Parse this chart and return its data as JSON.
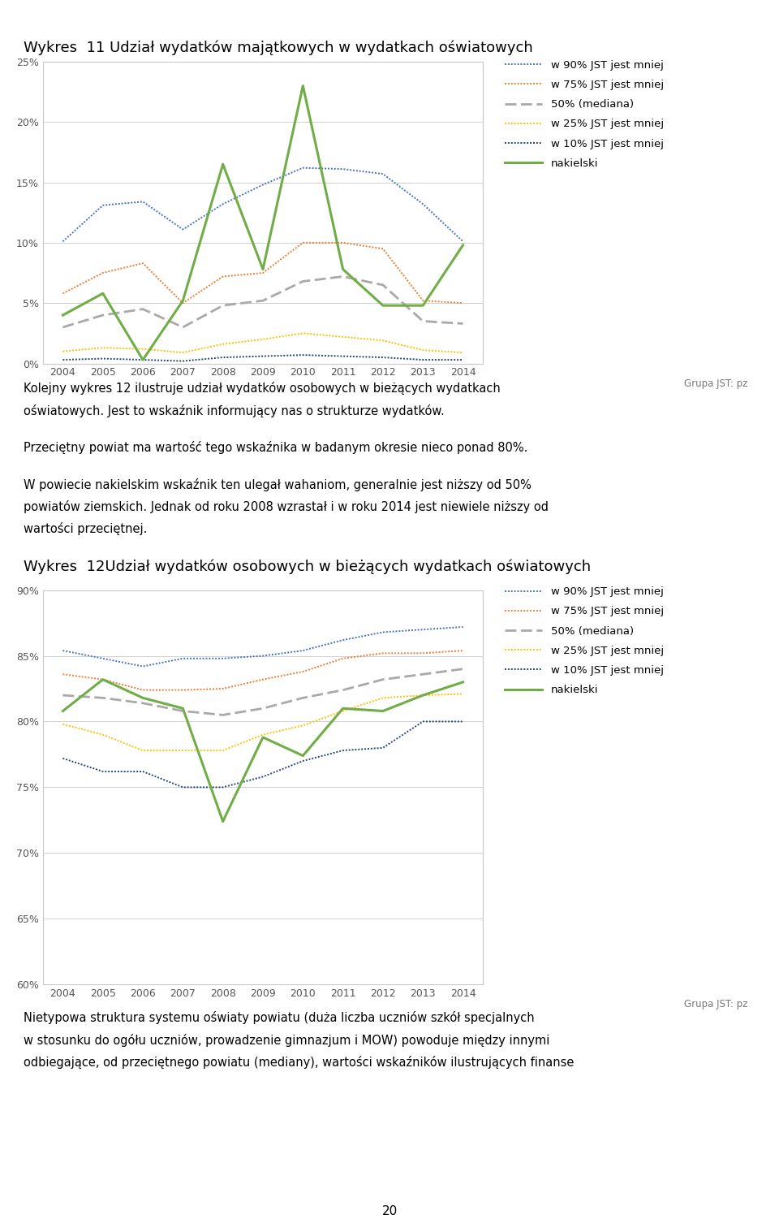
{
  "years": [
    2004,
    2005,
    2006,
    2007,
    2008,
    2009,
    2010,
    2011,
    2012,
    2013,
    2014
  ],
  "chart1": {
    "title": "Wykres  11 Udział wydatków majątkowych w wydatkach oświatowych",
    "ylim": [
      0.0,
      0.25
    ],
    "yticks": [
      0.0,
      0.05,
      0.1,
      0.15,
      0.2,
      0.25
    ],
    "ytick_labels": [
      "0%",
      "5%",
      "10%",
      "15%",
      "20%",
      "25%"
    ],
    "w90": [
      0.101,
      0.131,
      0.134,
      0.111,
      0.132,
      0.148,
      0.162,
      0.161,
      0.157,
      0.132,
      0.101
    ],
    "w75": [
      0.058,
      0.075,
      0.083,
      0.05,
      0.072,
      0.075,
      0.1,
      0.1,
      0.095,
      0.052,
      0.05
    ],
    "median": [
      0.03,
      0.04,
      0.045,
      0.03,
      0.048,
      0.052,
      0.068,
      0.072,
      0.065,
      0.035,
      0.033
    ],
    "w25": [
      0.01,
      0.013,
      0.012,
      0.009,
      0.016,
      0.02,
      0.025,
      0.022,
      0.019,
      0.011,
      0.009
    ],
    "w10": [
      0.003,
      0.004,
      0.003,
      0.002,
      0.005,
      0.006,
      0.007,
      0.006,
      0.005,
      0.003,
      0.003
    ],
    "nakielski": [
      0.04,
      0.058,
      0.003,
      0.052,
      0.165,
      0.078,
      0.23,
      0.078,
      0.048,
      0.048,
      0.098
    ]
  },
  "chart2": {
    "title": "Wykres  12Udział wydatków osobowych w bieżących wydatkach oświatowych",
    "ylim": [
      0.6,
      0.9
    ],
    "yticks": [
      0.6,
      0.65,
      0.7,
      0.75,
      0.8,
      0.85,
      0.9
    ],
    "ytick_labels": [
      "60%",
      "65%",
      "70%",
      "75%",
      "80%",
      "85%",
      "90%"
    ],
    "w90": [
      0.854,
      0.848,
      0.842,
      0.848,
      0.848,
      0.85,
      0.854,
      0.862,
      0.868,
      0.87,
      0.872
    ],
    "w75": [
      0.836,
      0.832,
      0.824,
      0.824,
      0.825,
      0.832,
      0.838,
      0.848,
      0.852,
      0.852,
      0.854
    ],
    "median": [
      0.82,
      0.818,
      0.814,
      0.808,
      0.805,
      0.81,
      0.818,
      0.824,
      0.832,
      0.836,
      0.84
    ],
    "w25": [
      0.798,
      0.79,
      0.778,
      0.778,
      0.778,
      0.79,
      0.797,
      0.808,
      0.818,
      0.82,
      0.821
    ],
    "w10": [
      0.772,
      0.762,
      0.762,
      0.75,
      0.75,
      0.758,
      0.77,
      0.778,
      0.78,
      0.8,
      0.8
    ],
    "nakielski": [
      0.808,
      0.832,
      0.818,
      0.81,
      0.724,
      0.788,
      0.774,
      0.81,
      0.808,
      0.82,
      0.83
    ]
  },
  "colors": {
    "w90": "#4472C4",
    "w75": "#ED7D31",
    "median": "#A9A9A9",
    "w25": "#FFC000",
    "w10": "#264478",
    "nakielski": "#70AD47"
  },
  "legend_labels": [
    "w 90% JST jest mniej",
    "w 75% JST jest mniej",
    "50% (mediana)",
    "w 25% JST jest mniej",
    "w 10% JST jest mniej",
    "nakielski"
  ],
  "group_label": "Grupa JST: pz",
  "txt1_line1": "Kolejny wykres 12 ilustruje udział wydatków osobowych w bieżących wydatkach",
  "txt1_line2": "oświatowych. Jest to wskaźnik informujący nas o strukturze wydatków.",
  "txt2": "Przeciętny powiat ma wartość tego wskaźnika w badanym okresie nieco ponad 80%.",
  "txt3_line1": "W powiecie nakielskim wskaźnik ten ulegał wahaniom, generalnie jest niższy od 50%",
  "txt3_line2": "powiatów ziemskich. Jednak od roku 2008 wzrastał i w roku 2014 jest niewiele niższy od",
  "txt3_line3": "wartości przeciętnej.",
  "chart2_title": "Wykres  12Udział wydatków osobowych w bieżących wydatkach oświatowych",
  "bottom_line1": "Nietypowa struktura systemu oświaty powiatu (duża liczba uczniów szkół specjalnych",
  "bottom_line2": "w stosunku do ogółu uczniów, prowadzenie gimnazjum i MOW) powoduje między innymi",
  "bottom_line3": "odbiegające, od przeciętnego powiatu (mediany), wartości wskaźników ilustrujących finanse",
  "page_number": "20"
}
